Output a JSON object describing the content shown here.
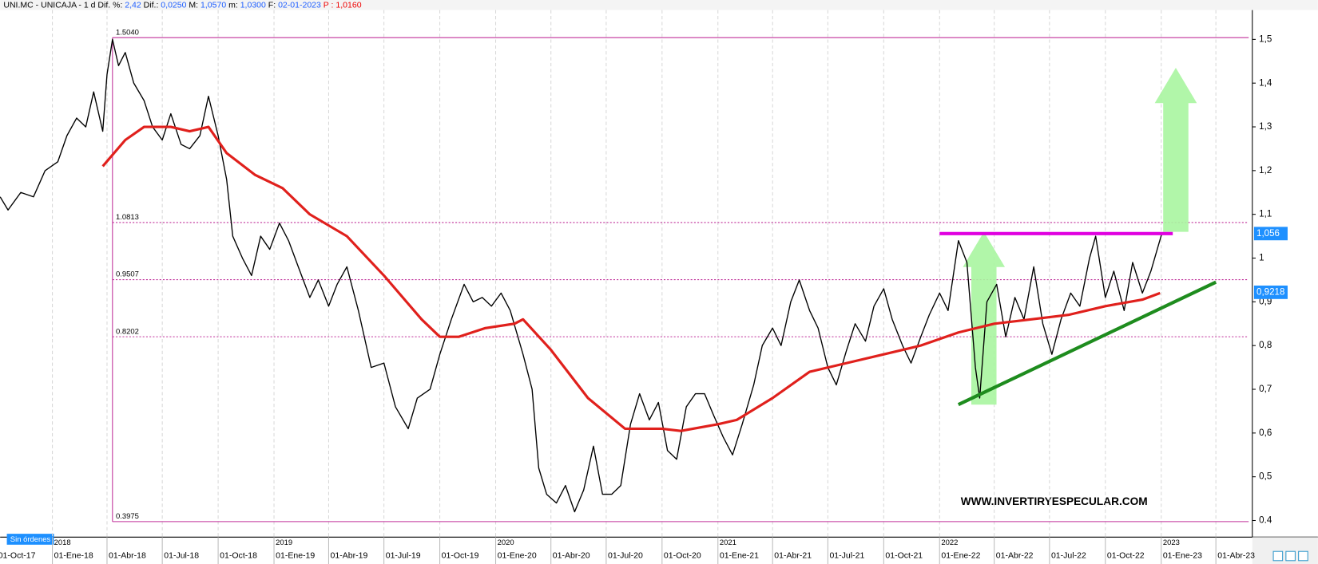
{
  "header": {
    "symbol": "UNI.MC - UNICAJA - 1 d",
    "fields": [
      {
        "label": "Dif. %:",
        "value": "2,42"
      },
      {
        "label": "Dif.:",
        "value": "0,0250"
      },
      {
        "label": "M:",
        "value": "1,0570"
      },
      {
        "label": "m:",
        "value": "1,0300"
      },
      {
        "label": "F:",
        "value": "02-01-2023"
      },
      {
        "label": "P :",
        "value": "1,0160"
      }
    ]
  },
  "status": "Sin órdenes",
  "watermark": "WWW.INVERTIRYESPECULAR.COM",
  "chart_data": {
    "type": "line",
    "xlim": [
      "2017-10-07",
      "2023-05-31"
    ],
    "ylim": [
      0.362,
      1.567
    ],
    "yticks": [
      0.4,
      {
        "value": 0.5,
        "label": "0,5"
      },
      {
        "value": 0.6,
        "label": "0,6"
      },
      {
        "value": 0.7,
        "label": "0,7"
      },
      {
        "value": 0.8,
        "label": "0,8"
      },
      {
        "value": 0.9,
        "label": "0,9"
      },
      1,
      {
        "value": 1.1,
        "label": "1,1"
      },
      {
        "value": 1.2,
        "label": "1,2"
      },
      {
        "value": 1.3,
        "label": "1,3"
      },
      {
        "value": 1.4,
        "label": "1,4"
      },
      {
        "value": 1.5,
        "label": "1,5"
      }
    ],
    "xticks": [
      {
        "value": "2017-10-01",
        "label": "01-Oct-17"
      },
      {
        "value": "2018-01-01",
        "label": "01-Ene-18"
      },
      {
        "value": "2018-04-01",
        "label": "01-Abr-18"
      },
      {
        "value": "2018-07-01",
        "label": "01-Jul-18"
      },
      {
        "value": "2018-10-01",
        "label": "01-Oct-18"
      },
      {
        "value": "2019-01-01",
        "label": "01-Ene-19"
      },
      {
        "value": "2019-04-01",
        "label": "01-Abr-19"
      },
      {
        "value": "2019-07-01",
        "label": "01-Jul-19"
      },
      {
        "value": "2019-10-01",
        "label": "01-Oct-19"
      },
      {
        "value": "2020-01-01",
        "label": "01-Ene-20"
      },
      {
        "value": "2020-04-01",
        "label": "01-Abr-20"
      },
      {
        "value": "2020-07-01",
        "label": "01-Jul-20"
      },
      {
        "value": "2020-10-01",
        "label": "01-Oct-20"
      },
      {
        "value": "2021-01-01",
        "label": "01-Ene-21"
      },
      {
        "value": "2021-04-01",
        "label": "01-Abr-21"
      },
      {
        "value": "2021-07-01",
        "label": "01-Jul-21"
      },
      {
        "value": "2021-10-01",
        "label": "01-Oct-21"
      },
      {
        "value": "2022-01-01",
        "label": "01-Ene-22"
      },
      {
        "value": "2022-04-01",
        "label": "01-Abr-22"
      },
      {
        "value": "2022-07-01",
        "label": "01-Jul-22"
      },
      {
        "value": "2022-10-01",
        "label": "01-Oct-22"
      },
      {
        "value": "2023-01-01",
        "label": "01-Ene-23"
      },
      {
        "value": "2023-04-01",
        "label": "01-Abr-23"
      }
    ],
    "year_ticks": [
      {
        "value": "2018-01-01",
        "label": "2018"
      },
      {
        "value": "2019-01-01",
        "label": "2019"
      },
      {
        "value": "2020-01-01",
        "label": "2020"
      },
      {
        "value": "2021-01-01",
        "label": "2021"
      },
      {
        "value": "2022-01-01",
        "label": "2022"
      },
      {
        "value": "2023-01-01",
        "label": "2023"
      }
    ],
    "series": [
      {
        "color": "#000000",
        "x": [
          "2017-10-07",
          "2017-10-20",
          "2017-11-10",
          "2017-12-01",
          "2017-12-20",
          "2018-01-10",
          "2018-01-25",
          "2018-02-10",
          "2018-02-25",
          "2018-03-10",
          "2018-03-25",
          "2018-04-01",
          "2018-04-10",
          "2018-04-20",
          "2018-05-01",
          "2018-05-15",
          "2018-06-01",
          "2018-06-15",
          "2018-07-01",
          "2018-07-15",
          "2018-08-01",
          "2018-08-15",
          "2018-09-01",
          "2018-09-15",
          "2018-10-01",
          "2018-10-15",
          "2018-10-25",
          "2018-11-10",
          "2018-11-25",
          "2018-12-10",
          "2018-12-25",
          "2019-01-10",
          "2019-01-25",
          "2019-02-10",
          "2019-03-01",
          "2019-03-15",
          "2019-04-01",
          "2019-04-15",
          "2019-05-01",
          "2019-05-20",
          "2019-06-10",
          "2019-07-01",
          "2019-07-20",
          "2019-08-10",
          "2019-08-25",
          "2019-09-15",
          "2019-10-01",
          "2019-10-20",
          "2019-11-10",
          "2019-11-25",
          "2019-12-10",
          "2019-12-25",
          "2020-01-10",
          "2020-01-25",
          "2020-02-15",
          "2020-03-01",
          "2020-03-12",
          "2020-03-25",
          "2020-04-10",
          "2020-04-25",
          "2020-05-10",
          "2020-05-25",
          "2020-06-10",
          "2020-06-25",
          "2020-07-10",
          "2020-07-25",
          "2020-08-10",
          "2020-08-25",
          "2020-09-10",
          "2020-09-25",
          "2020-10-10",
          "2020-10-25",
          "2020-11-10",
          "2020-11-25",
          "2020-12-10",
          "2020-12-25",
          "2021-01-10",
          "2021-01-25",
          "2021-02-10",
          "2021-03-01",
          "2021-03-15",
          "2021-04-01",
          "2021-04-15",
          "2021-05-01",
          "2021-05-15",
          "2021-06-01",
          "2021-06-15",
          "2021-07-01",
          "2021-07-15",
          "2021-08-01",
          "2021-08-15",
          "2021-09-01",
          "2021-09-15",
          "2021-10-01",
          "2021-10-15",
          "2021-11-01",
          "2021-11-15",
          "2021-12-01",
          "2021-12-15",
          "2022-01-01",
          "2022-01-15",
          "2022-02-01",
          "2022-02-15",
          "2022-03-01",
          "2022-03-08",
          "2022-03-20",
          "2022-04-05",
          "2022-04-20",
          "2022-05-05",
          "2022-05-20",
          "2022-06-05",
          "2022-06-20",
          "2022-07-05",
          "2022-07-20",
          "2022-08-05",
          "2022-08-20",
          "2022-09-05",
          "2022-09-15",
          "2022-10-01",
          "2022-10-15",
          "2022-11-01",
          "2022-11-15",
          "2022-12-01",
          "2022-12-15",
          "2023-01-02"
        ],
        "values": [
          1.14,
          1.11,
          1.15,
          1.14,
          1.2,
          1.22,
          1.28,
          1.32,
          1.3,
          1.38,
          1.29,
          1.42,
          1.5,
          1.44,
          1.47,
          1.4,
          1.36,
          1.3,
          1.27,
          1.33,
          1.26,
          1.25,
          1.28,
          1.37,
          1.28,
          1.18,
          1.05,
          1.0,
          0.96,
          1.05,
          1.02,
          1.08,
          1.04,
          0.98,
          0.91,
          0.95,
          0.89,
          0.94,
          0.98,
          0.88,
          0.75,
          0.76,
          0.66,
          0.61,
          0.68,
          0.7,
          0.78,
          0.86,
          0.94,
          0.9,
          0.91,
          0.89,
          0.92,
          0.88,
          0.78,
          0.7,
          0.52,
          0.46,
          0.44,
          0.48,
          0.42,
          0.47,
          0.57,
          0.46,
          0.46,
          0.48,
          0.62,
          0.69,
          0.63,
          0.67,
          0.56,
          0.54,
          0.66,
          0.69,
          0.69,
          0.64,
          0.59,
          0.55,
          0.62,
          0.71,
          0.8,
          0.84,
          0.8,
          0.9,
          0.95,
          0.88,
          0.84,
          0.75,
          0.71,
          0.79,
          0.85,
          0.81,
          0.89,
          0.93,
          0.86,
          0.8,
          0.76,
          0.82,
          0.87,
          0.92,
          0.88,
          1.04,
          0.99,
          0.75,
          0.68,
          0.9,
          0.94,
          0.82,
          0.91,
          0.86,
          0.98,
          0.85,
          0.78,
          0.86,
          0.92,
          0.89,
          1.0,
          1.05,
          0.91,
          0.97,
          0.88,
          0.99,
          0.92,
          0.97,
          1.056
        ]
      },
      {
        "color": "#e0201c",
        "x": [
          "2018-03-25",
          "2018-05-01",
          "2018-06-01",
          "2018-07-15",
          "2018-08-15",
          "2018-09-15",
          "2018-10-15",
          "2018-12-01",
          "2019-01-15",
          "2019-03-01",
          "2019-05-01",
          "2019-07-01",
          "2019-09-01",
          "2019-10-01",
          "2019-11-01",
          "2019-12-15",
          "2020-02-01",
          "2020-02-15",
          "2020-04-01",
          "2020-06-01",
          "2020-08-01",
          "2020-10-01",
          "2020-11-01",
          "2021-01-01",
          "2021-02-01",
          "2021-04-01",
          "2021-06-01",
          "2021-08-01",
          "2021-10-01",
          "2021-12-01",
          "2022-02-01",
          "2022-04-01",
          "2022-06-01",
          "2022-08-01",
          "2022-10-01",
          "2022-12-01",
          "2022-12-30"
        ],
        "values": [
          1.21,
          1.27,
          1.3,
          1.3,
          1.29,
          1.3,
          1.24,
          1.19,
          1.16,
          1.1,
          1.05,
          0.96,
          0.86,
          0.82,
          0.82,
          0.84,
          0.85,
          0.86,
          0.79,
          0.68,
          0.61,
          0.61,
          0.605,
          0.62,
          0.63,
          0.68,
          0.74,
          0.76,
          0.78,
          0.8,
          0.83,
          0.85,
          0.86,
          0.87,
          0.89,
          0.905,
          0.92
        ]
      }
    ],
    "fib_x": [
      "2018-04-10",
      "2023-05-25"
    ],
    "fib_levels": [
      {
        "value": 1.504,
        "label": "1.5040"
      },
      {
        "value": 1.0813,
        "label": "1.0813"
      },
      {
        "value": 0.9507,
        "label": "0.9507"
      },
      {
        "value": 0.8202,
        "label": "0.8202"
      },
      {
        "value": 0.3975,
        "label": "0.3975"
      }
    ],
    "fib_color": "#c0309a",
    "price_labels": [
      {
        "value": 1.056,
        "label": "1,056"
      },
      {
        "value": 0.9218,
        "label": "0,9218"
      }
    ],
    "drawings": [
      {
        "type": "arrow",
        "color": "#a8f5a0",
        "x": [
          "2022-03-15",
          "2022-03-15"
        ],
        "y": [
          0.665,
          1.06
        ]
      },
      {
        "type": "arrow",
        "color": "#a8f5a0",
        "x": [
          "2023-01-25",
          "2023-01-25"
        ],
        "y": [
          1.06,
          1.435
        ]
      },
      {
        "type": "line",
        "color": "#e000e0",
        "x": [
          "2022-01-01",
          "2023-01-20"
        ],
        "y": [
          1.056,
          1.056
        ]
      },
      {
        "type": "line",
        "color": "#1e8c1e",
        "x": [
          "2022-02-01",
          "2023-04-01"
        ],
        "y": [
          0.665,
          0.945
        ]
      }
    ]
  }
}
